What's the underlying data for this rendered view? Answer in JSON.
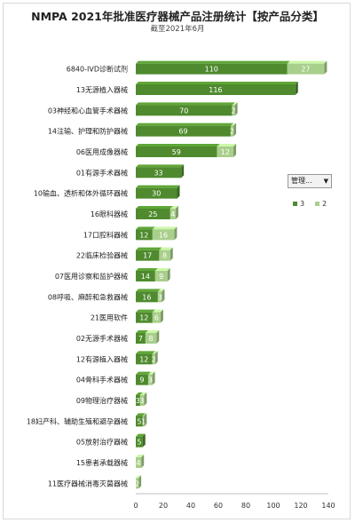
{
  "title": "NMPA 2021年批准医疗器械产品注册统计【按产品分类】",
  "subtitle": "截至2021年6月",
  "legend": {
    "filter_label": "管理...",
    "filter_icon": "dropdown-arrow-icon",
    "items": [
      {
        "name": "3",
        "color": "#4f8a2e"
      },
      {
        "name": "2",
        "color": "#a9cf8c"
      }
    ]
  },
  "chart_data": {
    "type": "bar",
    "orientation": "horizontal",
    "stacked": true,
    "categories": [
      "6840-IVD诊断试剂",
      "13无源植入器械",
      "03神经和心血管手术器械",
      "14注输、护理和防护器械",
      "06医用成像器械",
      "01有源手术器械",
      "10输血、透析和体外循环器械",
      "16眼科器械",
      "17口腔科器械",
      "22临床检验器械",
      "07医用诊察和监护器械",
      "08呼吸、麻醉和急救器械",
      "21医用软件",
      "02无源手术器械",
      "12有源植入器械",
      "04骨科手术器械",
      "09物理治疗器械",
      "18妇产科、辅助生殖和避孕器械",
      "05放射治疗器械",
      "15患者承载器械",
      "11医疗器械消毒灭菌器械"
    ],
    "series": [
      {
        "name": "3",
        "color": "#4f8a2e",
        "values": [
          110,
          116,
          70,
          69,
          59,
          33,
          30,
          25,
          12,
          17,
          14,
          16,
          12,
          7,
          12,
          9,
          3,
          5,
          5,
          0,
          0
        ]
      },
      {
        "name": "2",
        "color": "#a9cf8c",
        "values": [
          27,
          0,
          2,
          2,
          12,
          0,
          0,
          4,
          16,
          8,
          9,
          3,
          6,
          8,
          2,
          3,
          3,
          1,
          0,
          4,
          2
        ]
      }
    ],
    "data_labels": [
      [
        "110",
        "27"
      ],
      [
        "116",
        ""
      ],
      [
        "70",
        "2"
      ],
      [
        "69",
        "2"
      ],
      [
        "59",
        "12"
      ],
      [
        "33",
        ""
      ],
      [
        "30",
        ""
      ],
      [
        "25",
        "4"
      ],
      [
        "12",
        "16"
      ],
      [
        "17",
        "8"
      ],
      [
        "14",
        "9"
      ],
      [
        "16",
        "3"
      ],
      [
        "12",
        "6"
      ],
      [
        "7",
        "8"
      ],
      [
        "12",
        "2"
      ],
      [
        "9",
        "3"
      ],
      [
        "3",
        "3"
      ],
      [
        "5",
        "1"
      ],
      [
        "5",
        ""
      ],
      [
        "",
        "4"
      ],
      [
        "",
        "2"
      ]
    ],
    "xlim": [
      0,
      140
    ],
    "xticks": [
      "0",
      "20",
      "40",
      "60",
      "80",
      "100",
      "120",
      "140"
    ],
    "grid": false,
    "legend_position": "right"
  }
}
